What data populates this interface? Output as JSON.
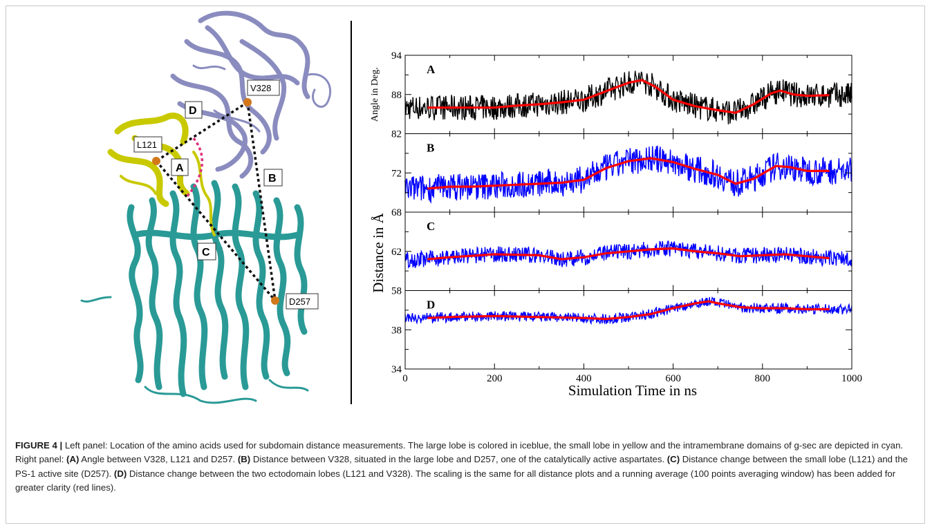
{
  "figure": {
    "caption": {
      "label": "FIGURE 4 |",
      "intro": " Left panel: Location of the amino acids used for subdomain distance measurements. The large lobe is colored in iceblue, the small lobe in yellow and the intramembrane domains of g-sec are depicted in cyan. Right panel: ",
      "a_label": "(A)",
      "a_text": " Angle between V328, L121 and D257. ",
      "b_label": "(B)",
      "b_text": " Distance between V328, situated in the large lobe and D257, one of the catalytically active aspartates. ",
      "c_label": "(C)",
      "c_text": " Distance change between the small lobe (L121) and the PS-1 active site (D257). ",
      "d_label": "(D)",
      "d_text": " Distance change between the two ectodomain lobes (L121 and V328). The scaling is the same for all distance plots and a running average (100 points averaging window) has been added for greater clarity (red lines)."
    },
    "left_panel": {
      "residues": [
        "V328",
        "L121",
        "D257"
      ],
      "measure_labels": [
        "A",
        "B",
        "C",
        "D"
      ],
      "colors": {
        "large_lobe": "#8a8cbf",
        "small_lobe": "#c9c900",
        "membrane": "#2a9a96",
        "atom": "#d2781a"
      }
    }
  },
  "chart_data": {
    "type": "line",
    "xlabel": "Simulation Time in ns",
    "xlim": [
      0,
      1000
    ],
    "xticks": [
      0,
      200,
      400,
      600,
      800,
      1000
    ],
    "colors": {
      "raw_A": "#000000",
      "raw": "#0000ff",
      "avg": "#ff0000"
    },
    "panels": [
      {
        "label": "A",
        "ylabel": "Angle in Deg.",
        "ylim": [
          82,
          94
        ],
        "yticks": [
          82,
          88,
          94
        ],
        "running_average": {
          "x": [
            50,
            100,
            150,
            200,
            250,
            300,
            350,
            400,
            450,
            500,
            530,
            560,
            600,
            650,
            700,
            740,
            780,
            820,
            840,
            870,
            900,
            950
          ],
          "y": [
            86,
            86,
            86,
            86,
            86.3,
            86.5,
            86.8,
            87.2,
            88.5,
            89.8,
            90.2,
            89.2,
            87.2,
            86.2,
            85.6,
            85.2,
            86.5,
            88.2,
            88.6,
            88,
            87.8,
            87.9
          ]
        },
        "raw_envelope": {
          "amplitude": 2.6
        }
      },
      {
        "label": "B",
        "ylabel": "",
        "ylim": [
          68,
          76
        ],
        "yticks": [
          68,
          72,
          76
        ],
        "running_average": {
          "x": [
            50,
            100,
            150,
            200,
            250,
            300,
            350,
            400,
            450,
            500,
            550,
            600,
            650,
            700,
            740,
            780,
            830,
            860,
            900,
            950
          ],
          "y": [
            70.4,
            70.6,
            70.6,
            70.7,
            70.8,
            70.9,
            71,
            71.3,
            72.5,
            73.2,
            73.5,
            73.1,
            72.4,
            71.8,
            70.9,
            71.4,
            72.7,
            72.6,
            72.2,
            72.2
          ]
        },
        "raw_envelope": {
          "amplitude": 1.9
        }
      },
      {
        "label": "C",
        "ylabel": "",
        "ylim": [
          58,
          66
        ],
        "yticks": [
          58,
          62,
          66
        ],
        "running_average": {
          "x": [
            50,
            100,
            200,
            300,
            350,
            400,
            450,
            500,
            550,
            600,
            650,
            700,
            750,
            800,
            850,
            900,
            950
          ],
          "y": [
            61.2,
            61.4,
            61.7,
            61.6,
            61.2,
            61.4,
            61.8,
            62,
            62.2,
            62.3,
            62,
            61.8,
            61.5,
            61.6,
            61.7,
            61.5,
            61.3
          ]
        },
        "raw_envelope": {
          "amplitude": 1.1
        }
      },
      {
        "label": "D",
        "ylabel": "",
        "ylim": [
          34,
          42
        ],
        "yticks": [
          34,
          38,
          42
        ],
        "running_average": {
          "x": [
            50,
            100,
            200,
            300,
            400,
            450,
            500,
            550,
            600,
            650,
            680,
            700,
            750,
            800,
            850,
            900,
            950
          ],
          "y": [
            39.2,
            39.3,
            39.4,
            39.3,
            39.2,
            39.1,
            39.3,
            39.6,
            40.2,
            40.7,
            40.9,
            40.7,
            40.3,
            40.2,
            40.2,
            40.1,
            40.1
          ]
        },
        "raw_envelope": {
          "amplitude": 0.7
        }
      }
    ],
    "shared_ylabel": "Distance in Å"
  }
}
